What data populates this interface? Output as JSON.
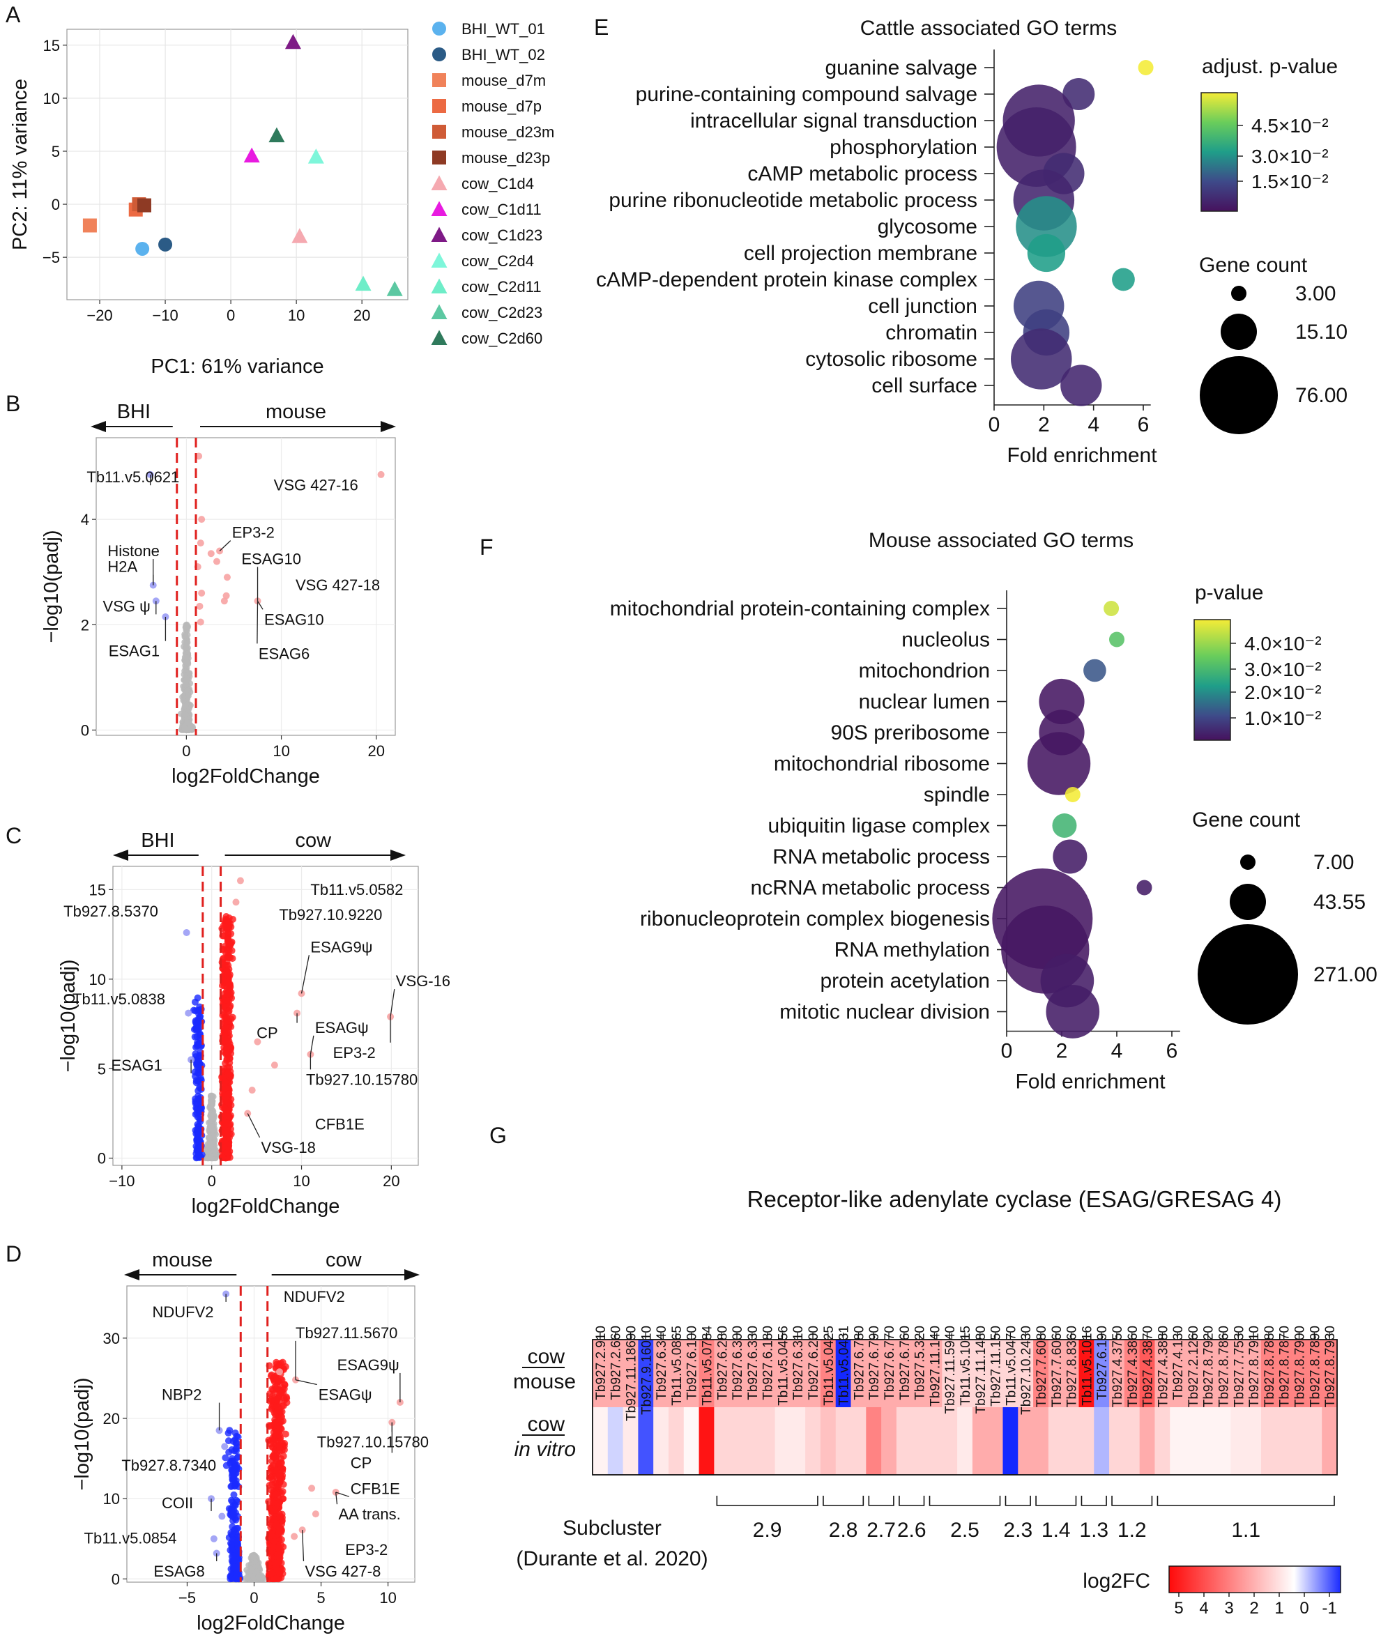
{
  "panel_letters": [
    "A",
    "B",
    "C",
    "D",
    "E",
    "F",
    "G"
  ],
  "chart_data": [
    {
      "id": "A",
      "type": "scatter",
      "xlabel": "PC1: 61% variance",
      "ylabel": "PC2: 11% variance",
      "xlim": [
        -25,
        27
      ],
      "ylim": [
        -9,
        16.5
      ],
      "xticks": [
        -20,
        -10,
        0,
        10,
        20
      ],
      "yticks": [
        -5,
        0,
        5,
        10,
        15
      ],
      "grid": true,
      "legend": [
        {
          "name": "BHI_WT_01",
          "shape": "circle",
          "color": "#5BB2EE"
        },
        {
          "name": "BHI_WT_02",
          "shape": "circle",
          "color": "#2B5B86"
        },
        {
          "name": "mouse_d7m",
          "shape": "square",
          "color": "#F0825A"
        },
        {
          "name": "mouse_d7p",
          "shape": "square",
          "color": "#EC6A43"
        },
        {
          "name": "mouse_d23m",
          "shape": "square",
          "color": "#CF5B36"
        },
        {
          "name": "mouse_d23p",
          "shape": "square",
          "color": "#8E3A24"
        },
        {
          "name": "cow_C1d4",
          "shape": "triangle",
          "color": "#F5A9B0"
        },
        {
          "name": "cow_C1d11",
          "shape": "triangle",
          "color": "#E81BE0"
        },
        {
          "name": "cow_C1d23",
          "shape": "triangle",
          "color": "#7E1A86"
        },
        {
          "name": "cow_C2d4",
          "shape": "triangle",
          "color": "#7EF6DA"
        },
        {
          "name": "cow_C2d11",
          "shape": "triangle",
          "color": "#6EEDC8"
        },
        {
          "name": "cow_C2d23",
          "shape": "triangle",
          "color": "#5CC8A2"
        },
        {
          "name": "cow_C2d60",
          "shape": "triangle",
          "color": "#2F7A5C"
        }
      ],
      "points": [
        {
          "group": "BHI_WT_01",
          "x": -13.5,
          "y": -4.2
        },
        {
          "group": "BHI_WT_02",
          "x": -10,
          "y": -3.8
        },
        {
          "group": "mouse_d7m",
          "x": -21.5,
          "y": -2
        },
        {
          "group": "mouse_d7p",
          "x": -14.5,
          "y": -0.5
        },
        {
          "group": "mouse_d23m",
          "x": -14,
          "y": 0
        },
        {
          "group": "mouse_d23p",
          "x": -13.2,
          "y": -0.1
        },
        {
          "group": "cow_C1d4",
          "x": 10.5,
          "y": -3
        },
        {
          "group": "cow_C1d11",
          "x": 3.2,
          "y": 4.6
        },
        {
          "group": "cow_C1d23",
          "x": 9.5,
          "y": 15.3
        },
        {
          "group": "cow_C2d4",
          "x": 13,
          "y": 4.5
        },
        {
          "group": "cow_C2d11",
          "x": 20.2,
          "y": -7.5
        },
        {
          "group": "cow_C2d23",
          "x": 25,
          "y": -8
        },
        {
          "group": "cow_C2d60",
          "x": 7,
          "y": 6.5
        }
      ]
    },
    {
      "id": "B",
      "type": "scatter",
      "xlabel": "log2FoldChange",
      "ylabel": "−log10(padj)",
      "xlim": [
        -9.5,
        22
      ],
      "ylim": [
        -0.1,
        5.55
      ],
      "xticks": [
        0,
        10,
        20
      ],
      "yticks": [
        0,
        2,
        4
      ],
      "thresholds": [
        -1,
        1
      ],
      "arrow_left": "BHI",
      "arrow_right": "mouse",
      "points_blue": [
        [
          -3.8,
          4.85
        ],
        [
          -3.5,
          2.75
        ],
        [
          -3.2,
          2.45
        ],
        [
          -2.2,
          2.15
        ]
      ],
      "points_red": [
        [
          1.3,
          5.2
        ],
        [
          1.6,
          4.0
        ],
        [
          1.5,
          3.55
        ],
        [
          1.2,
          3.1
        ],
        [
          1.6,
          2.6
        ],
        [
          1.4,
          2.35
        ],
        [
          1.5,
          2.05
        ],
        [
          2.6,
          3.35
        ],
        [
          3.5,
          3.4
        ],
        [
          3.2,
          3.2
        ],
        [
          4.3,
          2.9
        ],
        [
          4.2,
          2.55
        ],
        [
          4.0,
          2.45
        ],
        [
          7.5,
          2.45
        ],
        [
          20.5,
          4.85
        ]
      ],
      "labels": [
        {
          "text": "Tb11.v5.0621",
          "x": -10.5,
          "y": 4.7,
          "anchor": "start"
        },
        {
          "text": "Histone",
          "x": -8.3,
          "y": 3.3,
          "anchor": "start"
        },
        {
          "text": "H2A",
          "x": -8.3,
          "y": 3.0,
          "anchor": "start"
        },
        {
          "text": "VSG ψ",
          "x": -8.8,
          "y": 2.25,
          "anchor": "start"
        },
        {
          "text": "ESAG1",
          "x": -8.2,
          "y": 1.4,
          "anchor": "start"
        },
        {
          "text": "EP3-2",
          "x": 4.8,
          "y": 3.65,
          "anchor": "start"
        },
        {
          "text": "ESAG10",
          "x": 5.8,
          "y": 3.15,
          "anchor": "start"
        },
        {
          "text": "VSG 427-18",
          "x": 11.5,
          "y": 2.65,
          "anchor": "start"
        },
        {
          "text": "ESAG10",
          "x": 8.2,
          "y": 2.0,
          "anchor": "start"
        },
        {
          "text": "ESAG6",
          "x": 7.6,
          "y": 1.35,
          "anchor": "start"
        },
        {
          "text": "VSG 427-16",
          "x": 9.2,
          "y": 4.55,
          "anchor": "start"
        }
      ]
    },
    {
      "id": "C",
      "type": "scatter",
      "xlabel": "log2FoldChange",
      "ylabel": "−log10(padj)",
      "xlim": [
        -11,
        23
      ],
      "ylim": [
        -0.4,
        16.3
      ],
      "xticks": [
        -10,
        0,
        10,
        20
      ],
      "yticks": [
        0,
        5,
        10,
        15
      ],
      "thresholds": [
        -1,
        1
      ],
      "arrow_left": "BHI",
      "arrow_right": "cow",
      "points_blue_highlight": [
        [
          -2.8,
          12.6
        ],
        [
          -2.6,
          8.1
        ],
        [
          -2.3,
          5.5
        ]
      ],
      "points_red_highlight": [
        [
          3.2,
          15.5
        ],
        [
          2.7,
          14.3
        ],
        [
          10,
          9.2
        ],
        [
          9.5,
          8.1
        ],
        [
          19.9,
          7.9
        ],
        [
          5.1,
          6.5
        ],
        [
          11,
          5.8
        ],
        [
          7.0,
          5.2
        ],
        [
          4.5,
          3.8
        ],
        [
          4.0,
          2.5
        ]
      ],
      "labels": [
        {
          "text": "Tb11.v5.0582",
          "x": 11,
          "y": 14.7,
          "anchor": "start"
        },
        {
          "text": "Tb927.8.5370",
          "x": -16.5,
          "y": 13.5,
          "anchor": "start"
        },
        {
          "text": "Tb927.10.9220",
          "x": 7.5,
          "y": 13.3,
          "anchor": "start"
        },
        {
          "text": "ESAG9ψ",
          "x": 11,
          "y": 11.5,
          "anchor": "start"
        },
        {
          "text": "VSG-16",
          "x": 20.5,
          "y": 9.6,
          "anchor": "start"
        },
        {
          "text": "Tb11.v5.0838",
          "x": -15.5,
          "y": 8.6,
          "anchor": "start"
        },
        {
          "text": "ESAGψ",
          "x": 11.5,
          "y": 7.0,
          "anchor": "start"
        },
        {
          "text": "CP",
          "x": 5.0,
          "y": 6.7,
          "anchor": "start"
        },
        {
          "text": "EP3-2",
          "x": 13.5,
          "y": 5.6,
          "anchor": "start"
        },
        {
          "text": "ESAG1",
          "x": -11.2,
          "y": 4.9,
          "anchor": "start"
        },
        {
          "text": "Tb927.10.15780",
          "x": 10.5,
          "y": 4.1,
          "anchor": "start"
        },
        {
          "text": "CFB1E",
          "x": 11.5,
          "y": 1.6,
          "anchor": "start"
        },
        {
          "text": "VSG-18",
          "x": 5.5,
          "y": 0.3,
          "anchor": "start"
        }
      ]
    },
    {
      "id": "D",
      "type": "scatter",
      "xlabel": "log2FoldChange",
      "ylabel": "−log10(padj)",
      "xlim": [
        -9.5,
        12
      ],
      "ylim": [
        -0.4,
        36.5
      ],
      "xticks": [
        -5,
        0,
        5,
        10
      ],
      "yticks": [
        0,
        10,
        20,
        30
      ],
      "thresholds": [
        -1,
        1
      ],
      "arrow_left": "mouse",
      "arrow_right": "cow",
      "points_blue_highlight": [
        [
          -2.1,
          35.5
        ],
        [
          -2.6,
          18.5
        ],
        [
          -2.2,
          16.5
        ],
        [
          -3.2,
          10.0
        ],
        [
          -2.4,
          7.8
        ],
        [
          -3.0,
          5.0
        ],
        [
          -2.8,
          3.2
        ]
      ],
      "points_red_highlight": [
        [
          1.9,
          25.8
        ],
        [
          3.1,
          24.8
        ],
        [
          10.9,
          22.0
        ],
        [
          10.3,
          19.5
        ],
        [
          4.3,
          11.3
        ],
        [
          6.1,
          10.8
        ],
        [
          4.6,
          8.1
        ],
        [
          3.6,
          6.1
        ],
        [
          3.0,
          5.3
        ]
      ],
      "labels": [
        {
          "text": "NDUFV2",
          "x": -7.6,
          "y": 32.6,
          "anchor": "start"
        },
        {
          "text": "NDUFV2",
          "x": 2.2,
          "y": 34.5,
          "anchor": "start"
        },
        {
          "text": "Tb927.11.5670",
          "x": 3.1,
          "y": 30.0,
          "anchor": "start"
        },
        {
          "text": "ESAG9ψ",
          "x": 6.2,
          "y": 26.0,
          "anchor": "start"
        },
        {
          "text": "ESAGψ",
          "x": 4.8,
          "y": 22.3,
          "anchor": "start"
        },
        {
          "text": "NBP2",
          "x": -6.9,
          "y": 22.3,
          "anchor": "start"
        },
        {
          "text": "Tb927.10.15780",
          "x": 4.7,
          "y": 16.4,
          "anchor": "start"
        },
        {
          "text": "Tb927.8.7340",
          "x": -9.9,
          "y": 13.5,
          "anchor": "start"
        },
        {
          "text": "CP",
          "x": 7.2,
          "y": 13.8,
          "anchor": "start"
        },
        {
          "text": "CFB1E",
          "x": 7.2,
          "y": 10.6,
          "anchor": "start"
        },
        {
          "text": "COII",
          "x": -6.9,
          "y": 8.8,
          "anchor": "start"
        },
        {
          "text": "AA trans.",
          "x": 6.3,
          "y": 7.4,
          "anchor": "start"
        },
        {
          "text": "Tb11.v5.0854",
          "x": -12.7,
          "y": 4.4,
          "anchor": "start"
        },
        {
          "text": "EP3-2",
          "x": 6.8,
          "y": 3.0,
          "anchor": "start"
        },
        {
          "text": "ESAG8",
          "x": -7.5,
          "y": 0.3,
          "anchor": "start"
        },
        {
          "text": "VSG 427-8",
          "x": 3.8,
          "y": 0.3,
          "anchor": "start"
        }
      ]
    },
    {
      "id": "E",
      "type": "scatter",
      "title": "Cattle associated GO terms",
      "xlabel": "Fold enrichment",
      "xlim": [
        0,
        6.5
      ],
      "xticks": [
        0,
        2,
        4,
        6
      ],
      "categories": [
        "guanine salvage",
        "purine-containing compound salvage",
        "intracellular signal transduction",
        "phosphorylation",
        "cAMP metabolic process",
        "purine ribonucleotide metabolic process",
        "glycosome",
        "cell projection membrane",
        "cAMP-dependent protein kinase complex",
        "cell junction",
        "chromatin",
        "cytosolic ribosome",
        "cell surface"
      ],
      "fold_enrichment": [
        6.1,
        3.4,
        1.8,
        1.7,
        2.8,
        2.0,
        2.1,
        2.1,
        5.2,
        1.8,
        2.1,
        1.9,
        3.5
      ],
      "gene_count": [
        3,
        8,
        60,
        76,
        15,
        40,
        40,
        12,
        4,
        25,
        20,
        40,
        15
      ],
      "adjusted_p_value": [
        0.052,
        0.013,
        0.011,
        0.011,
        0.013,
        0.012,
        0.028,
        0.03,
        0.03,
        0.017,
        0.017,
        0.013,
        0.012
      ],
      "color_legend": {
        "title": "adjust. p-value",
        "ticks": [
          "4.5×10⁻²",
          "3.0×10⁻²",
          "1.5×10⁻²"
        ]
      },
      "size_legend": {
        "title": "Gene count",
        "values": [
          "3.00",
          "15.10",
          "76.00"
        ]
      }
    },
    {
      "id": "F",
      "type": "scatter",
      "title": "Mouse associated GO terms",
      "xlabel": "Fold enrichment",
      "xlim": [
        0,
        6.5
      ],
      "xticks": [
        0,
        2,
        4,
        6
      ],
      "categories": [
        "mitochondrial protein-containing complex",
        "nucleolus",
        "mitochondrion",
        "nuclear lumen",
        "90S preribosome",
        "mitochondrial ribosome",
        "spindle",
        "ubiquitin ligase complex",
        "RNA metabolic process",
        "ncRNA metabolic process",
        "ribonucleoprotein complex biogenesis",
        "RNA methylation",
        "protein acetylation",
        "mitotic nuclear division"
      ],
      "fold_enrichment": [
        3.8,
        4.0,
        3.2,
        2.0,
        2.0,
        1.9,
        2.4,
        2.1,
        2.3,
        5.0,
        1.3,
        1.4,
        2.2,
        2.4
      ],
      "gene_count": [
        7,
        7,
        9,
        40,
        40,
        90,
        7,
        10,
        20,
        7,
        271,
        200,
        60,
        60
      ],
      "p_value": [
        0.045,
        0.035,
        0.018,
        0.007,
        0.007,
        0.007,
        0.048,
        0.032,
        0.008,
        0.008,
        0.007,
        0.007,
        0.008,
        0.008
      ],
      "color_legend": {
        "title": "p-value",
        "ticks": [
          "4.0×10⁻²",
          "3.0×10⁻²",
          "2.0×10⁻²",
          "1.0×10⁻²"
        ]
      },
      "size_legend": {
        "title": "Gene count",
        "values": [
          "7.00",
          "43.55",
          "271.00"
        ]
      }
    },
    {
      "id": "G",
      "type": "heatmap",
      "title": "Receptor-like adenylate cyclase (ESAG/GRESAG 4)",
      "genes": [
        "Tb927.2.910",
        "Tb927.2.660",
        "Tb927.11.18690",
        "Tb927.9.16010",
        "Tb927.6.340",
        "Tb11.v5.0865",
        "Tb927.6.100",
        "Tb11.v5.0784",
        "Tb927.6.280",
        "Tb927.6.300",
        "Tb927.6.330",
        "Tb927.6.180",
        "Tb11.v5.0456",
        "Tb927.6.310",
        "Tb927.6.200",
        "Tb11.v5.0425",
        "Tb11.v5.0431",
        "Tb927.6.780",
        "Tb927.6.790",
        "Tb927.6.770",
        "Tb927.6.760",
        "Tb927.5.320",
        "Tb927.11.140",
        "Tb927.11.5940",
        "Tb11.v5.1015",
        "Tb927.11.1480",
        "Tb927.11.150",
        "Tb11.v5.0470",
        "Tb927.10.2430",
        "Tb927.7.6080",
        "Tb927.7.6060",
        "Tb927.8.8360",
        "Tb11.v5.1016",
        "Tb927.6.190",
        "Tb927.4.3750",
        "Tb927.4.3860",
        "Tb927.4.3870",
        "Tb927.4.3880",
        "Tb927.4.130",
        "Tb927.2.1260",
        "Tb927.8.7920",
        "Tb927.8.7860",
        "Tb927.7.7530",
        "Tb927.8.7910",
        "Tb927.8.7880",
        "Tb927.8.7870",
        "Tb927.8.7900",
        "Tb927.8.7890",
        "Tb927.8.7930"
      ],
      "rows": [
        {
          "label": "cow",
          "label2": "mouse",
          "values": [
            2,
            2,
            2,
            -1.3,
            2,
            2,
            2,
            3,
            2,
            2,
            2,
            2,
            2,
            2,
            2,
            3,
            -1.5,
            2,
            2,
            2,
            2,
            2,
            2,
            1,
            1,
            1,
            1,
            1,
            1,
            3,
            2,
            2,
            5,
            -0.8,
            2,
            3,
            4,
            2,
            2,
            2,
            2,
            2,
            2,
            2,
            3,
            3,
            3,
            3,
            3
          ]
        },
        {
          "label": "cow",
          "label2": "in vitro",
          "values": [
            0.3,
            -0.3,
            0.5,
            -1.2,
            0.5,
            1,
            0.2,
            5,
            1,
            1,
            1,
            1,
            0.5,
            0.5,
            1,
            1.5,
            1,
            1,
            3,
            2,
            1,
            1,
            1,
            1,
            0.5,
            2,
            2,
            -1.8,
            2,
            2,
            1,
            1,
            1,
            -0.5,
            1,
            1,
            2,
            1,
            0.3,
            0.3,
            0.3,
            0.3,
            0.5,
            0.5,
            1,
            1,
            1,
            1,
            2
          ]
        }
      ],
      "subclusters": [
        {
          "label": "2.9",
          "start": 8,
          "end": 15
        },
        {
          "label": "2.8",
          "start": 15,
          "end": 18
        },
        {
          "label": "2.7",
          "start": 18,
          "end": 20
        },
        {
          "label": "2.6",
          "start": 20,
          "end": 22
        },
        {
          "label": "2.5",
          "start": 22,
          "end": 27
        },
        {
          "label": "2.3",
          "start": 27,
          "end": 29
        },
        {
          "label": "1.4",
          "start": 29,
          "end": 32
        },
        {
          "label": "1.3",
          "start": 32,
          "end": 34
        },
        {
          "label": "1.2",
          "start": 34,
          "end": 37
        },
        {
          "label": "1.1",
          "start": 37,
          "end": 49
        }
      ],
      "subcluster_caption": "Subcluster",
      "subcluster_ref": "(Durante et al. 2020)",
      "colorbar_title": "log2FC",
      "colorbar_ticks": [
        "5",
        "4",
        "3",
        "2",
        "1",
        "0",
        "-1"
      ]
    }
  ]
}
